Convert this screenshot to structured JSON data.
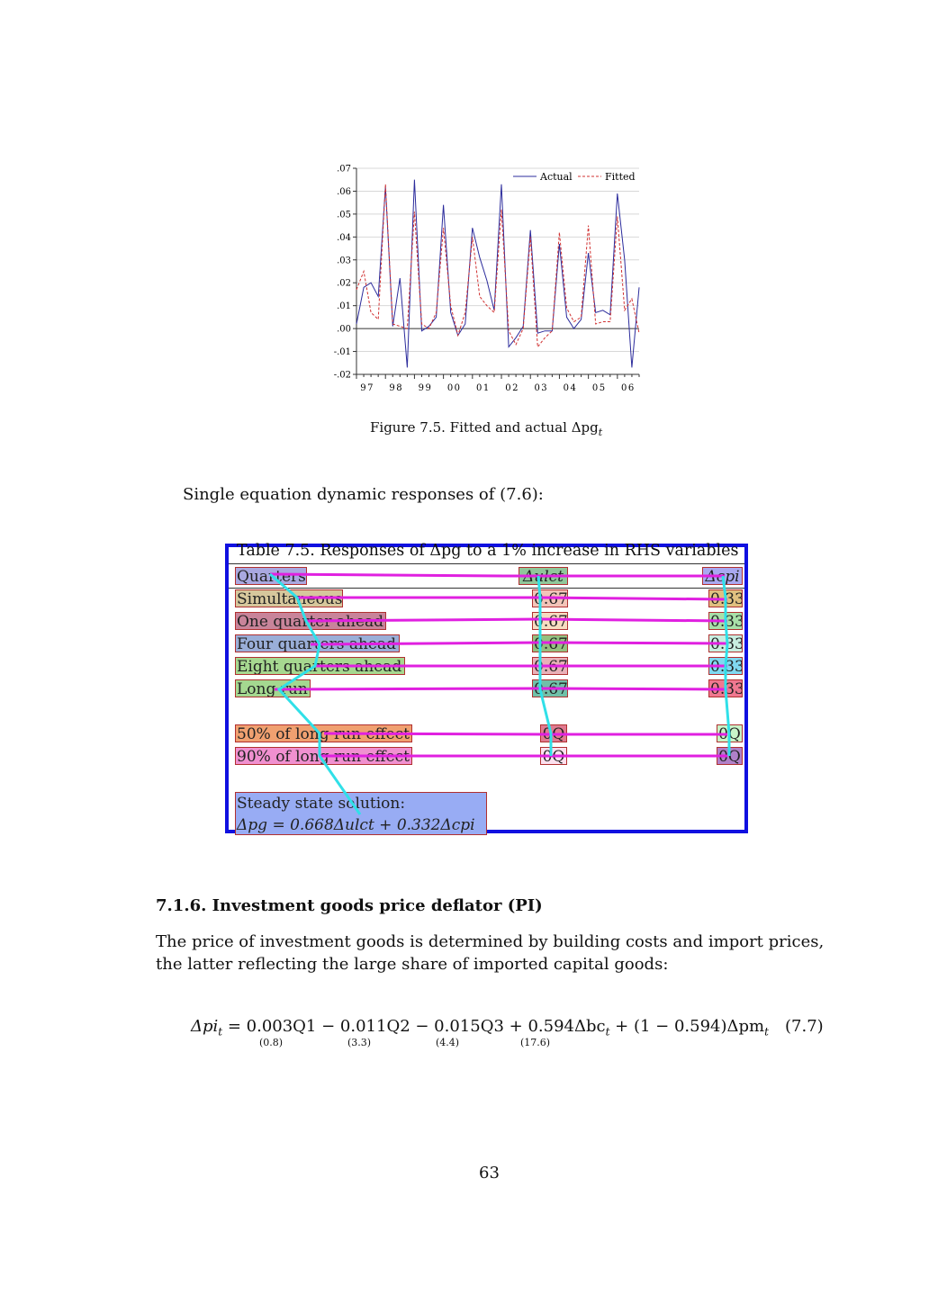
{
  "figure": {
    "caption": "Figure 7.5. Fitted and actual Δpg",
    "caption_sub": "t"
  },
  "chart_data": {
    "type": "line",
    "x_ticks": [
      "97",
      "98",
      "99",
      "00",
      "01",
      "02",
      "03",
      "04",
      "05",
      "06"
    ],
    "y_ticks": [
      ".07",
      ".06",
      ".05",
      ".04",
      ".03",
      ".02",
      ".01",
      ".00",
      "-.01",
      "-.02"
    ],
    "ylim": [
      -0.02,
      0.07
    ],
    "grid": true,
    "legend_position": "top-right",
    "series": [
      {
        "name": "Actual",
        "color": "#2c2c9c",
        "style": "solid",
        "values": [
          0.002,
          0.018,
          0.02,
          0.014,
          0.062,
          0.001,
          0.022,
          -0.017,
          0.065,
          -0.001,
          0.001,
          0.005,
          0.054,
          0.007,
          -0.003,
          0.002,
          0.044,
          0.031,
          0.021,
          0.008,
          0.063,
          -0.008,
          -0.004,
          0.001,
          0.043,
          -0.002,
          -0.001,
          -0.001,
          0.037,
          0.005,
          0.0,
          0.004,
          0.033,
          0.007,
          0.008,
          0.006,
          0.059,
          0.03,
          -0.017,
          0.018
        ]
      },
      {
        "name": "Fitted",
        "color": "#d03030",
        "style": "dashed",
        "values": [
          0.017,
          0.025,
          0.007,
          0.004,
          0.063,
          0.002,
          0.001,
          0.0,
          0.051,
          0.002,
          0.0,
          0.007,
          0.044,
          0.01,
          -0.003,
          0.007,
          0.04,
          0.014,
          0.01,
          0.007,
          0.052,
          -0.001,
          -0.007,
          0.0,
          0.04,
          -0.008,
          -0.004,
          -0.001,
          0.042,
          0.009,
          0.003,
          0.005,
          0.045,
          0.002,
          0.003,
          0.003,
          0.049,
          0.008,
          0.013,
          -0.002
        ]
      }
    ]
  },
  "intro": "Single equation dynamic responses of (7.6):",
  "table": {
    "title": "Table 7.5. Responses of Δpg to a 1% increase in RHS variables",
    "headers": [
      "Quarters",
      "Δulct",
      "Δcpi"
    ],
    "rows": [
      [
        "Simultaneous",
        "0.67",
        "0.33"
      ],
      [
        "One quarter ahead",
        "0.67",
        "0.33"
      ],
      [
        "Four quarters ahead",
        "0.67",
        "0.33"
      ],
      [
        "Eight quarters ahead",
        "0.67",
        "0.33"
      ],
      [
        "Long run",
        "0.67",
        "0.33"
      ]
    ],
    "effect_rows": [
      [
        "50% of long run effect",
        "0Q",
        "0Q"
      ],
      [
        "90% of long run effect",
        "0Q",
        "0Q"
      ]
    ],
    "steady_label": "Steady state solution:",
    "steady_eq": "Δpg = 0.668Δulct + 0.332Δcpi"
  },
  "section": {
    "heading": "7.1.6. Investment goods price deflator (PI)",
    "paragraph": "The price of investment goods is determined by building costs and import prices, the latter reflecting the large share of imported capital goods:"
  },
  "equation": {
    "lhs": "Δpi",
    "lhs_sub": "t",
    "body": "= 0.003Q1 − 0.011Q2 − 0.015Q3 + 0.594Δbc",
    "body_sub": "t",
    "tail": "+ (1 − 0.594)Δpm",
    "tail_sub": "t",
    "number": "(7.7)",
    "se": [
      "(0.8)",
      "(3.3)",
      "(4.4)",
      "(17.6)"
    ]
  },
  "page_number": "63",
  "annotation_colors": {
    "frame": "#1010e0",
    "row_lines": "#e020e0",
    "col_lines": "#30e0e8"
  }
}
